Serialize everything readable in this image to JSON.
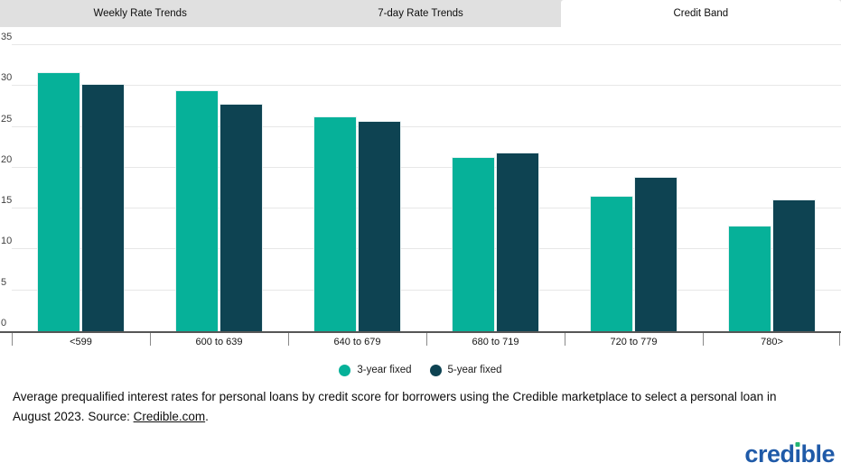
{
  "tabs": [
    {
      "label": "Weekly Rate Trends",
      "active": false
    },
    {
      "label": "7-day Rate Trends",
      "active": false
    },
    {
      "label": "Credit Band",
      "active": true
    }
  ],
  "chart_data": {
    "type": "bar",
    "categories": [
      "<599",
      "600 to 639",
      "640 to 679",
      "680 to 719",
      "720 to 779",
      "780>"
    ],
    "series": [
      {
        "name": "3-year fixed",
        "color": "#06b199",
        "values": [
          31.6,
          29.4,
          26.2,
          21.2,
          16.4,
          12.8
        ]
      },
      {
        "name": "5-year fixed",
        "color": "#0e4352",
        "values": [
          30.1,
          27.7,
          25.6,
          21.8,
          18.8,
          16.0
        ]
      }
    ],
    "title": "",
    "xlabel": "",
    "ylabel": "",
    "ylim": [
      0,
      35
    ],
    "yticks": [
      0,
      5,
      10,
      15,
      20,
      25,
      30,
      35
    ],
    "grid": true,
    "legend_position": "bottom"
  },
  "caption": {
    "text_before_link": "Average prequalified interest rates for personal loans by credit score for borrowers using the Credible marketplace to select a personal loan in August 2023. Source: ",
    "link_text": "Credible.com",
    "text_after_link": "."
  },
  "logo": {
    "full": "credible",
    "pre": "cred",
    "stem": "ı",
    "post": "ble",
    "text_color": "#1f5aa8",
    "dot_color": "#23b473"
  },
  "colors": {
    "bar_3yr": "#06b199",
    "bar_5yr": "#0e4352",
    "tabbar_bg": "#e0e0e0",
    "gridline": "#e7e7e7",
    "axis": "#565656"
  }
}
